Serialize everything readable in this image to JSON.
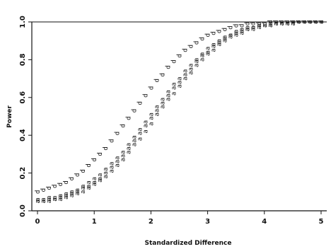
{
  "chart_data": {
    "type": "scatter",
    "title": "",
    "xlabel": "Standardized Difference",
    "ylabel": "Power",
    "xlim": [
      -0.1,
      5.1
    ],
    "ylim": [
      0,
      1
    ],
    "x_ticks": [
      "0",
      "1",
      "2",
      "3",
      "4",
      "5"
    ],
    "y_ticks": [
      "0.0",
      "0.2",
      "0.4",
      "0.6",
      "0.8",
      "1.0"
    ],
    "x_tick_values": [
      0,
      1,
      2,
      3,
      4,
      5
    ],
    "y_tick_values": [
      0,
      0.2,
      0.4,
      0.6,
      0.8,
      1.0
    ],
    "grid": false,
    "series": [
      {
        "marker": "d",
        "x": [
          0.0,
          0.1,
          0.2,
          0.3,
          0.4,
          0.5,
          0.6,
          0.7,
          0.8,
          0.9,
          1.0,
          1.1,
          1.2,
          1.3,
          1.4,
          1.5,
          1.6,
          1.7,
          1.8,
          1.9,
          2.0,
          2.1,
          2.2,
          2.3,
          2.4,
          2.5,
          2.6,
          2.7,
          2.8,
          2.9,
          3.0,
          3.1,
          3.2,
          3.3,
          3.4,
          3.5,
          3.6,
          3.7,
          3.8,
          3.9,
          4.0,
          4.1,
          4.2,
          4.3,
          4.4,
          4.5,
          4.6,
          4.7,
          4.8,
          4.9,
          5.0
        ],
        "y": [
          0.1,
          0.11,
          0.12,
          0.13,
          0.14,
          0.15,
          0.17,
          0.19,
          0.21,
          0.24,
          0.27,
          0.3,
          0.33,
          0.37,
          0.41,
          0.45,
          0.49,
          0.53,
          0.57,
          0.61,
          0.65,
          0.69,
          0.72,
          0.76,
          0.79,
          0.82,
          0.85,
          0.87,
          0.89,
          0.91,
          0.93,
          0.94,
          0.95,
          0.96,
          0.97,
          0.98,
          0.98,
          0.99,
          0.99,
          0.99,
          0.99,
          1.0,
          1.0,
          1.0,
          1.0,
          1.0,
          1.0,
          1.0,
          1.0,
          1.0,
          1.0
        ]
      },
      {
        "marker": "a",
        "x": [
          0.0,
          0.1,
          0.2,
          0.3,
          0.4,
          0.5,
          0.6,
          0.7,
          0.8,
          0.9,
          1.0,
          1.1,
          1.2,
          1.3,
          1.4,
          1.5,
          1.6,
          1.7,
          1.8,
          1.9,
          2.0,
          2.1,
          2.2,
          2.3,
          2.4,
          2.5,
          2.6,
          2.7,
          2.8,
          2.9,
          3.0,
          3.1,
          3.2,
          3.3,
          3.4,
          3.5,
          3.6,
          3.7,
          3.8,
          3.9,
          4.0,
          4.1,
          4.2,
          4.3,
          4.4,
          4.5,
          4.6,
          4.7,
          4.8,
          4.9,
          5.0
        ],
        "y": [
          0.06,
          0.06,
          0.07,
          0.07,
          0.08,
          0.09,
          0.1,
          0.11,
          0.13,
          0.15,
          0.17,
          0.19,
          0.22,
          0.25,
          0.28,
          0.31,
          0.35,
          0.39,
          0.43,
          0.47,
          0.51,
          0.55,
          0.59,
          0.63,
          0.67,
          0.7,
          0.74,
          0.77,
          0.8,
          0.83,
          0.86,
          0.88,
          0.9,
          0.92,
          0.93,
          0.95,
          0.96,
          0.97,
          0.97,
          0.98,
          0.98,
          0.99,
          0.99,
          0.99,
          0.99,
          1.0,
          1.0,
          1.0,
          1.0,
          1.0,
          1.0
        ]
      },
      {
        "marker": "a",
        "x": [
          0.0,
          0.1,
          0.2,
          0.3,
          0.4,
          0.5,
          0.6,
          0.7,
          0.8,
          0.9,
          1.0,
          1.1,
          1.2,
          1.3,
          1.4,
          1.5,
          1.6,
          1.7,
          1.8,
          1.9,
          2.0,
          2.1,
          2.2,
          2.3,
          2.4,
          2.5,
          2.6,
          2.7,
          2.8,
          2.9,
          3.0,
          3.1,
          3.2,
          3.3,
          3.4,
          3.5,
          3.6,
          3.7,
          3.8,
          3.9,
          4.0,
          4.1,
          4.2,
          4.3,
          4.4,
          4.5,
          4.6,
          4.7,
          4.8,
          4.9,
          5.0
        ],
        "y": [
          0.05,
          0.05,
          0.06,
          0.06,
          0.07,
          0.08,
          0.09,
          0.1,
          0.12,
          0.13,
          0.15,
          0.17,
          0.2,
          0.23,
          0.26,
          0.29,
          0.33,
          0.37,
          0.41,
          0.45,
          0.49,
          0.53,
          0.57,
          0.61,
          0.65,
          0.68,
          0.72,
          0.75,
          0.79,
          0.82,
          0.84,
          0.87,
          0.89,
          0.91,
          0.93,
          0.94,
          0.95,
          0.96,
          0.97,
          0.98,
          0.98,
          0.98,
          0.99,
          0.99,
          0.99,
          0.99,
          1.0,
          1.0,
          1.0,
          1.0,
          1.0
        ]
      },
      {
        "marker": "a",
        "x": [
          0.0,
          0.1,
          0.2,
          0.3,
          0.4,
          0.5,
          0.6,
          0.7,
          0.8,
          0.9,
          1.0,
          1.1,
          1.2,
          1.3,
          1.4,
          1.5,
          1.6,
          1.7,
          1.8,
          1.9,
          2.0,
          2.1,
          2.2,
          2.3,
          2.4,
          2.5,
          2.6,
          2.7,
          2.8,
          2.9,
          3.0,
          3.1,
          3.2,
          3.3,
          3.4,
          3.5,
          3.6,
          3.7,
          3.8,
          3.9,
          4.0,
          4.1,
          4.2,
          4.3,
          4.4,
          4.5,
          4.6,
          4.7,
          4.8,
          4.9,
          5.0
        ],
        "y": [
          0.05,
          0.05,
          0.05,
          0.06,
          0.06,
          0.07,
          0.08,
          0.09,
          0.1,
          0.12,
          0.14,
          0.16,
          0.18,
          0.21,
          0.24,
          0.27,
          0.31,
          0.35,
          0.38,
          0.42,
          0.46,
          0.51,
          0.55,
          0.59,
          0.62,
          0.66,
          0.7,
          0.73,
          0.77,
          0.8,
          0.83,
          0.85,
          0.88,
          0.9,
          0.92,
          0.93,
          0.94,
          0.96,
          0.96,
          0.97,
          0.98,
          0.98,
          0.99,
          0.99,
          0.99,
          0.99,
          1.0,
          1.0,
          1.0,
          1.0,
          1.0
        ]
      }
    ]
  }
}
